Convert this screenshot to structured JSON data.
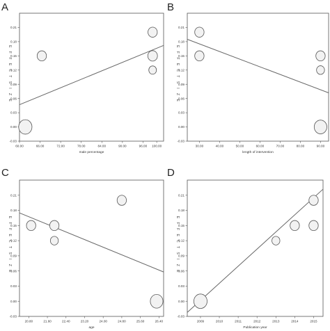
{
  "chart_data": [
    {
      "panel": "A",
      "type": "scatter",
      "xlabel": "male percentage",
      "ylabel": "EFFECT SIZE",
      "xlim": [
        60.0,
        102.0
      ],
      "ylim": [
        -0.03,
        0.24
      ],
      "xticks": [
        "60.00",
        "66.00",
        "72.00",
        "78.00",
        "84.00",
        "90.00",
        "96.00",
        "100.00"
      ],
      "xtick_values": [
        60,
        66,
        72,
        78,
        84,
        90,
        96,
        100
      ],
      "yticks": [
        "-0.03",
        "0.00",
        "0.03",
        "0.06",
        "0.09",
        "0.12",
        "0.15",
        "0.18",
        "0.21"
      ],
      "ytick_values": [
        -0.03,
        0.0,
        0.03,
        0.06,
        0.09,
        0.12,
        0.15,
        0.18,
        0.21
      ],
      "points": [
        {
          "x": 61.7,
          "y": 0.0,
          "size": 2.0
        },
        {
          "x": 66.5,
          "y": 0.15,
          "size": 1.4
        },
        {
          "x": 98.8,
          "y": 0.2,
          "size": 1.4
        },
        {
          "x": 98.8,
          "y": 0.15,
          "size": 1.45
        },
        {
          "x": 98.8,
          "y": 0.12,
          "size": 1.15
        }
      ],
      "fit_line": [
        [
          60.0,
          0.047
        ],
        [
          102.0,
          0.172
        ]
      ]
    },
    {
      "panel": "B",
      "type": "scatter",
      "xlabel": "length of intervention",
      "ylabel": "EFFECT SIZE",
      "xlim": [
        24.0,
        94.0
      ],
      "ylim": [
        -0.03,
        0.24
      ],
      "xticks": [
        "30.00",
        "40.00",
        "50.00",
        "60.00",
        "70.00",
        "80.00",
        "90.00"
      ],
      "xtick_values": [
        30,
        40,
        50,
        60,
        70,
        80,
        90
      ],
      "yticks": [
        "-0.03",
        "0.00",
        "0.03",
        "0.06",
        "0.09",
        "0.12",
        "0.15",
        "0.18",
        "0.21"
      ],
      "ytick_values": [
        -0.03,
        0.0,
        0.03,
        0.06,
        0.09,
        0.12,
        0.15,
        0.18,
        0.21
      ],
      "points": [
        {
          "x": 30.0,
          "y": 0.2,
          "size": 1.4
        },
        {
          "x": 30.0,
          "y": 0.15,
          "size": 1.4
        },
        {
          "x": 90.0,
          "y": 0.15,
          "size": 1.4
        },
        {
          "x": 90.0,
          "y": 0.12,
          "size": 1.2
        },
        {
          "x": 90.0,
          "y": 0.0,
          "size": 1.9
        }
      ],
      "fit_line": [
        [
          24.0,
          0.185
        ],
        [
          94.0,
          0.072
        ]
      ]
    },
    {
      "panel": "C",
      "type": "scatter",
      "xlabel": "age",
      "ylabel": "EFFECT SIZE",
      "xlim": [
        20.4,
        26.6
      ],
      "ylim": [
        -0.03,
        0.24
      ],
      "xticks": [
        "20.80",
        "21.60",
        "22.40",
        "23.20",
        "24.00",
        "24.80",
        "25.60",
        "26.40"
      ],
      "xtick_values": [
        20.8,
        21.6,
        22.4,
        23.2,
        24.0,
        24.8,
        25.6,
        26.4
      ],
      "yticks": [
        "-0.03",
        "0.00",
        "0.03",
        "0.06",
        "0.09",
        "0.12",
        "0.15",
        "0.18",
        "0.21"
      ],
      "ytick_values": [
        -0.03,
        0.0,
        0.03,
        0.06,
        0.09,
        0.12,
        0.15,
        0.18,
        0.21
      ],
      "points": [
        {
          "x": 20.9,
          "y": 0.15,
          "size": 1.4
        },
        {
          "x": 21.9,
          "y": 0.15,
          "size": 1.4
        },
        {
          "x": 21.9,
          "y": 0.12,
          "size": 1.2
        },
        {
          "x": 24.8,
          "y": 0.2,
          "size": 1.4
        },
        {
          "x": 26.3,
          "y": 0.0,
          "size": 1.9
        }
      ],
      "fit_line": [
        [
          20.4,
          0.175
        ],
        [
          26.6,
          0.058
        ]
      ]
    },
    {
      "panel": "D",
      "type": "scatter",
      "xlabel": "Publication year",
      "ylabel": "EFFECT SIZE",
      "xlim": [
        2008.3,
        2015.5
      ],
      "ylim": [
        -0.03,
        0.24
      ],
      "xticks": [
        "2009",
        "2010",
        "2011",
        "2012",
        "2013",
        "2014",
        "2015"
      ],
      "xtick_values": [
        2009,
        2010,
        2011,
        2012,
        2013,
        2014,
        2015
      ],
      "yticks": [
        "-0.03",
        "0.00",
        "0.03",
        "0.06",
        "0.09",
        "0.12",
        "0.15",
        "0.18",
        "0.21"
      ],
      "ytick_values": [
        -0.03,
        0.0,
        0.03,
        0.06,
        0.09,
        0.12,
        0.15,
        0.18,
        0.21
      ],
      "points": [
        {
          "x": 2009.0,
          "y": 0.0,
          "size": 2.0
        },
        {
          "x": 2013.0,
          "y": 0.12,
          "size": 1.2
        },
        {
          "x": 2014.0,
          "y": 0.15,
          "size": 1.4
        },
        {
          "x": 2015.0,
          "y": 0.2,
          "size": 1.4
        },
        {
          "x": 2015.0,
          "y": 0.15,
          "size": 1.4
        }
      ],
      "fit_line": [
        [
          2008.3,
          -0.022
        ],
        [
          2015.5,
          0.222
        ]
      ]
    }
  ],
  "style": {
    "frame_color": "#555555",
    "bubble_fill": "#f2f2f2",
    "bubble_stroke": "#555555",
    "line_color": "#666666"
  }
}
